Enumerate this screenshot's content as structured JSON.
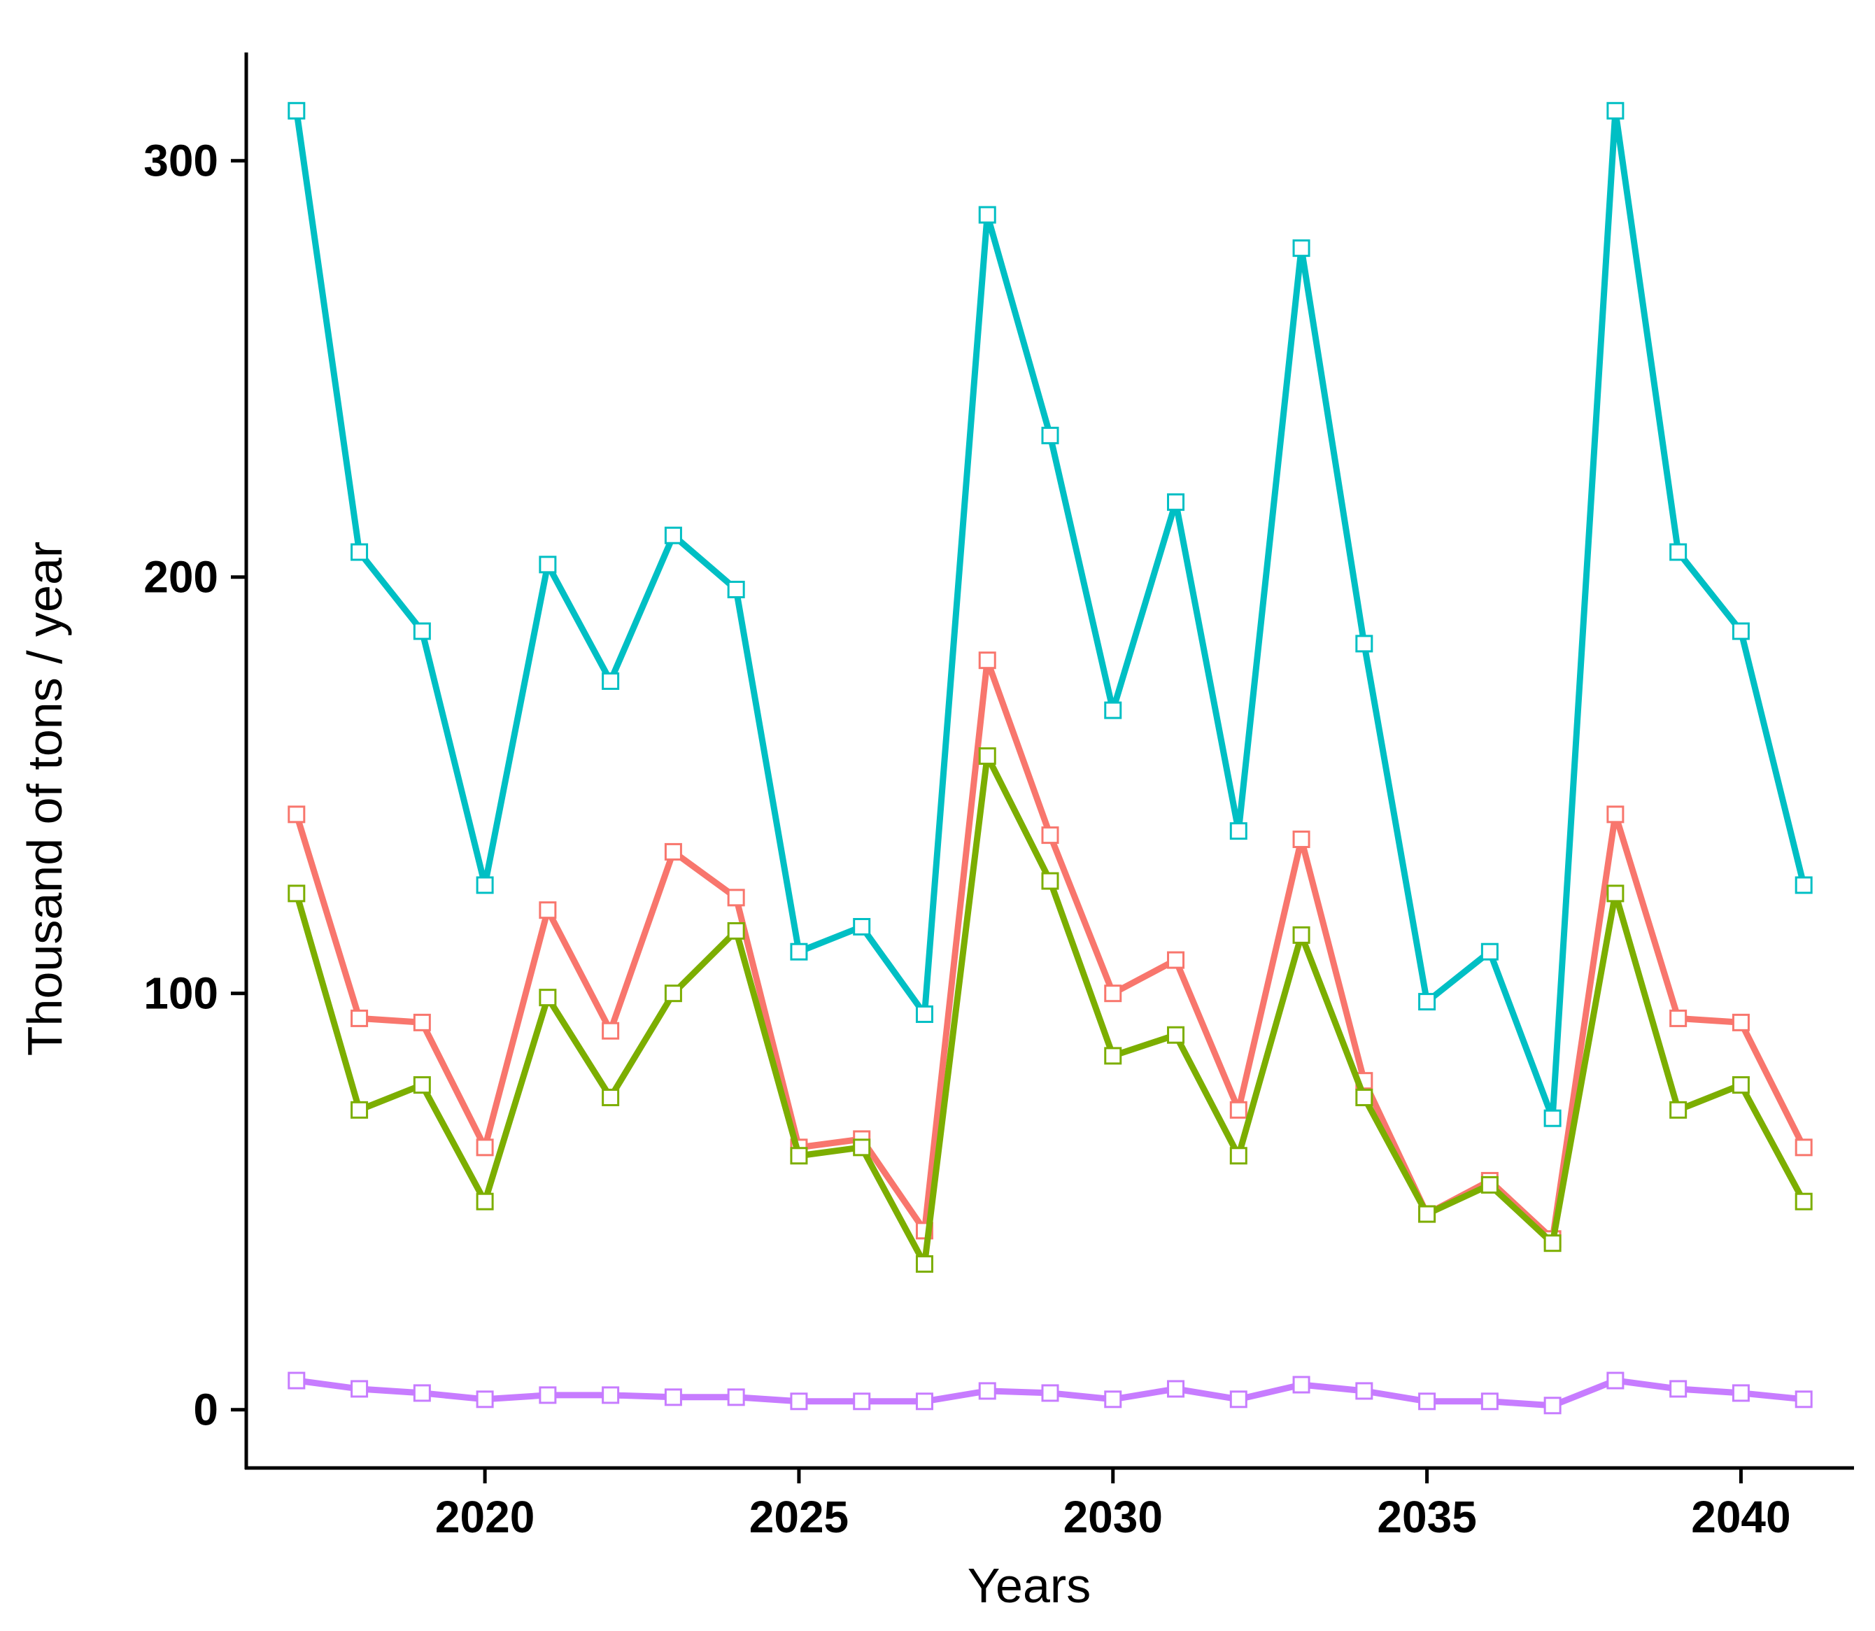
{
  "chart_data": {
    "type": "line",
    "title": "",
    "xlabel": "Years",
    "ylabel": "Thousand of tons / year",
    "xlim": [
      2016.2,
      2041.8
    ],
    "ylim": [
      -14,
      326
    ],
    "x_ticks": [
      2020,
      2025,
      2030,
      2035,
      2040
    ],
    "y_ticks": [
      0,
      100,
      200,
      300
    ],
    "grid": false,
    "legend": "none",
    "marker": "open-square",
    "x": [
      2017,
      2018,
      2019,
      2020,
      2021,
      2022,
      2023,
      2024,
      2025,
      2026,
      2027,
      2028,
      2029,
      2030,
      2031,
      2032,
      2033,
      2034,
      2035,
      2036,
      2037,
      2038,
      2039,
      2040,
      2041
    ],
    "series": [
      {
        "color": "#00BFC4",
        "values": [
          312,
          206,
          187,
          126,
          203,
          175,
          210,
          197,
          110,
          116,
          95,
          287,
          234,
          168,
          218,
          139,
          279,
          184,
          98,
          110,
          70,
          312,
          206,
          187,
          126
        ]
      },
      {
        "color": "#F8766D",
        "values": [
          143,
          94,
          93,
          63,
          120,
          91,
          134,
          123,
          63,
          65,
          43,
          180,
          138,
          100,
          108,
          72,
          137,
          79,
          47,
          55,
          41,
          143,
          94,
          93,
          63
        ]
      },
      {
        "color": "#7CAE00",
        "values": [
          124,
          72,
          78,
          50,
          99,
          75,
          100,
          115,
          61,
          63,
          35,
          157,
          127,
          85,
          90,
          61,
          114,
          75,
          47,
          54,
          40,
          124,
          72,
          78,
          50
        ]
      },
      {
        "color": "#C77CFF",
        "values": [
          7,
          5,
          4,
          2.5,
          3.5,
          3.5,
          3,
          3,
          2,
          2,
          2,
          4.5,
          4,
          2.5,
          5,
          2.5,
          6,
          4.5,
          2,
          2,
          1,
          7,
          5,
          4,
          2.5
        ]
      }
    ]
  }
}
